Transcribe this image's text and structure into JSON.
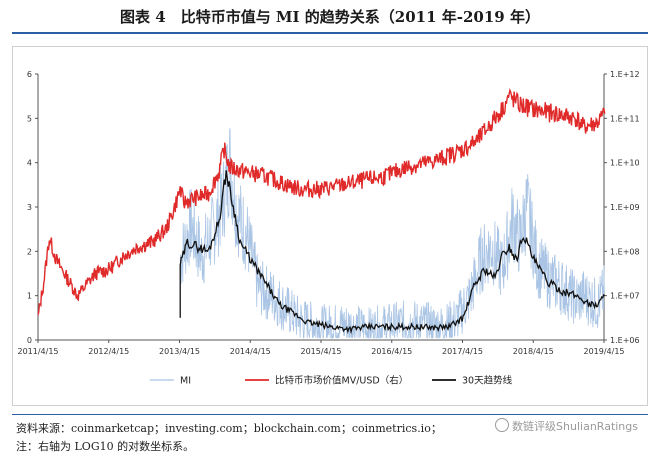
{
  "title": "图表 4　比特币市值与 MI 的趋势关系（2011 年-2019 年）",
  "footer": {
    "source": "资料来源：coinmarketcap；investing.com；blockchain.com；coinmetrics.io；",
    "note": "注：右轴为 LOG10 的对数坐标系。",
    "watermark": "数链评级ShulianRatings"
  },
  "colors": {
    "mi": "#a9c4e4",
    "mv": "#e02a2a",
    "trend": "#111111",
    "rule": "#2a5fa8"
  },
  "chart_data": {
    "type": "line",
    "x_ticks": [
      "2011/4/15",
      "2012/4/15",
      "2013/4/15",
      "2014/4/15",
      "2015/4/15",
      "2016/4/15",
      "2017/4/15",
      "2018/4/15",
      "2019/4/15"
    ],
    "left_axis": {
      "ylim": [
        0,
        6
      ],
      "ticks": [
        "0",
        "1",
        "2",
        "3",
        "4",
        "5",
        "6"
      ]
    },
    "right_axis": {
      "scale": "log10",
      "ylim_log10": [
        6,
        12
      ],
      "ticks": [
        "1.E+06",
        "1.E+07",
        "1.E+08",
        "1.E+09",
        "1.E+10",
        "1.E+11",
        "1.E+12"
      ]
    },
    "legend_placement": "bottom",
    "series": [
      {
        "name": "MI",
        "axis": "left",
        "x": [
          2013.3,
          2013.45,
          2013.6,
          2013.75,
          2013.9,
          2014.0,
          2014.1,
          2014.25,
          2014.4,
          2014.6,
          2014.8,
          2015.0,
          2015.3,
          2015.6,
          2016.0,
          2016.3,
          2016.6,
          2017.0,
          2017.2,
          2017.4,
          2017.55,
          2017.7,
          2017.85,
          2018.0,
          2018.1,
          2018.2,
          2018.35,
          2018.5,
          2018.7,
          2018.9,
          2019.0,
          2019.2,
          2019.3
        ],
        "values": [
          1.8,
          2.6,
          1.9,
          2.4,
          3.1,
          4.0,
          2.9,
          2.3,
          1.2,
          1.0,
          0.7,
          0.45,
          0.3,
          0.35,
          0.25,
          0.35,
          0.4,
          0.3,
          0.45,
          1.0,
          1.8,
          2.1,
          1.6,
          2.7,
          2.2,
          3.0,
          1.7,
          1.4,
          1.2,
          0.9,
          1.0,
          0.8,
          1.1
        ]
      },
      {
        "name": "比特币市场价值MV/USD（右）",
        "axis": "right",
        "x": [
          2011.29,
          2011.37,
          2011.45,
          2011.55,
          2011.7,
          2011.85,
          2011.95,
          2012.1,
          2012.3,
          2012.5,
          2012.7,
          2012.9,
          2013.1,
          2013.2,
          2013.3,
          2013.35,
          2013.5,
          2013.7,
          2013.85,
          2013.92,
          2014.0,
          2014.2,
          2014.5,
          2014.8,
          2015.0,
          2015.3,
          2015.6,
          2015.9,
          2016.2,
          2016.5,
          2016.8,
          2017.0,
          2017.3,
          2017.5,
          2017.7,
          2017.85,
          2017.95,
          2018.1,
          2018.3,
          2018.6,
          2018.9,
          2019.0,
          2019.2,
          2019.3
        ],
        "values_log10": [
          6.5,
          7.3,
          8.3,
          7.8,
          7.4,
          7.0,
          7.2,
          7.5,
          7.6,
          7.9,
          8.1,
          8.2,
          8.5,
          8.9,
          9.4,
          9.1,
          9.2,
          9.3,
          9.8,
          10.3,
          9.9,
          9.8,
          9.7,
          9.5,
          9.4,
          9.4,
          9.5,
          9.6,
          9.7,
          9.9,
          10.0,
          10.1,
          10.3,
          10.5,
          10.9,
          11.2,
          11.5,
          11.3,
          11.2,
          11.1,
          11.0,
          10.8,
          10.9,
          11.1
        ]
      },
      {
        "name": "30天趋势线",
        "axis": "left",
        "x": [
          2013.3,
          2013.4,
          2013.55,
          2013.7,
          2013.85,
          2013.95,
          2014.05,
          2014.15,
          2014.3,
          2014.5,
          2014.7,
          2014.9,
          2015.1,
          2015.4,
          2015.7,
          2016.0,
          2016.3,
          2016.6,
          2016.9,
          2017.1,
          2017.3,
          2017.45,
          2017.6,
          2017.75,
          2017.85,
          2017.95,
          2018.05,
          2018.15,
          2018.3,
          2018.5,
          2018.7,
          2018.9,
          2019.1,
          2019.2,
          2019.3
        ],
        "values": [
          1.7,
          2.2,
          2.1,
          2.0,
          2.7,
          3.8,
          3.0,
          2.2,
          1.8,
          1.3,
          0.8,
          0.6,
          0.4,
          0.3,
          0.25,
          0.3,
          0.3,
          0.3,
          0.28,
          0.3,
          0.5,
          1.2,
          1.6,
          1.4,
          1.9,
          2.1,
          1.8,
          2.4,
          1.8,
          1.3,
          1.1,
          1.0,
          0.8,
          0.8,
          1.0
        ]
      }
    ]
  }
}
